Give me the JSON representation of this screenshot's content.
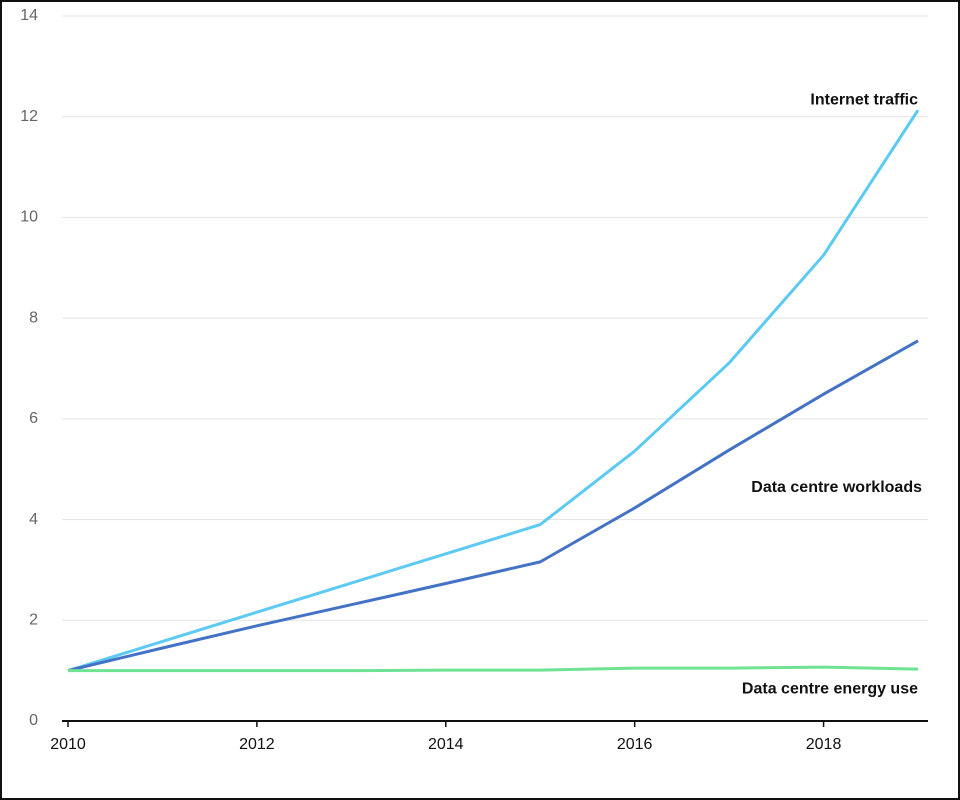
{
  "chart_data": {
    "type": "line",
    "x": [
      2010,
      2011,
      2012,
      2013,
      2014,
      2015,
      2016,
      2017,
      2018,
      2019
    ],
    "series": [
      {
        "name": "Internet traffic",
        "color": "#5ccaf2",
        "values": [
          1.0,
          1.58,
          2.16,
          2.74,
          3.32,
          3.9,
          5.36,
          7.11,
          9.25,
          12.13
        ]
      },
      {
        "name": "Data centre workloads",
        "color": "#4472c4",
        "values": [
          1.0,
          1.45,
          1.89,
          2.31,
          2.73,
          3.16,
          4.23,
          5.38,
          6.49,
          7.55
        ]
      },
      {
        "name": "Data centre energy use",
        "color": "#6ee394",
        "values": [
          1.0,
          1.0,
          1.0,
          1.0,
          1.01,
          1.01,
          1.05,
          1.05,
          1.07,
          1.03
        ]
      }
    ],
    "xlim": [
      2010,
      2019
    ],
    "xticks": [
      2010,
      2012,
      2014,
      2016,
      2018
    ],
    "ylim": [
      0,
      14
    ],
    "yticks": [
      0,
      2,
      4,
      6,
      8,
      10,
      12,
      14
    ],
    "grid": true
  }
}
